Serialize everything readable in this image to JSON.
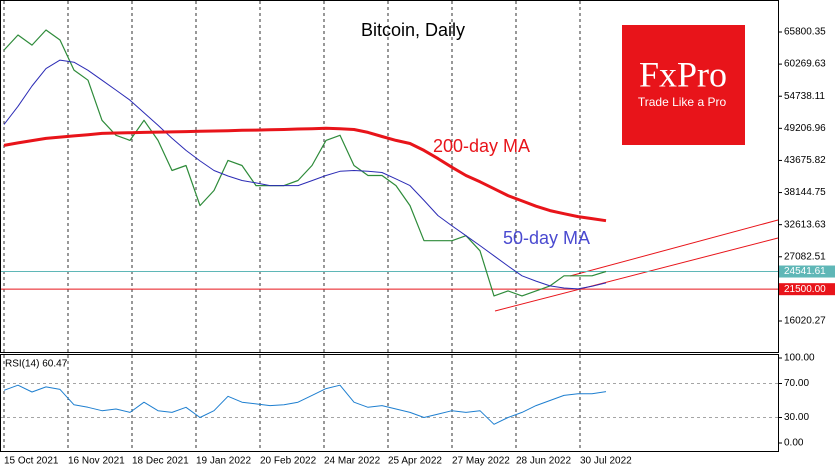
{
  "chart_data": [
    {
      "type": "line",
      "title": "Bitcoin, Daily",
      "x": [
        "2021-10-15",
        "2021-10-22",
        "2021-10-29",
        "2021-11-05",
        "2021-11-12",
        "2021-11-19",
        "2021-11-26",
        "2021-12-03",
        "2021-12-10",
        "2021-12-17",
        "2021-12-24",
        "2021-12-31",
        "2022-01-07",
        "2022-01-14",
        "2022-01-21",
        "2022-01-28",
        "2022-02-04",
        "2022-02-11",
        "2022-02-18",
        "2022-02-25",
        "2022-03-04",
        "2022-03-11",
        "2022-03-18",
        "2022-03-25",
        "2022-04-01",
        "2022-04-08",
        "2022-04-15",
        "2022-04-22",
        "2022-04-29",
        "2022-05-06",
        "2022-05-13",
        "2022-05-20",
        "2022-05-27",
        "2022-06-03",
        "2022-06-10",
        "2022-06-17",
        "2022-06-24",
        "2022-07-01",
        "2022-07-08",
        "2022-07-15",
        "2022-07-22",
        "2022-07-29",
        "2022-08-05",
        "2022-08-12"
      ],
      "series": [
        {
          "color": "#2e8b3a",
          "width": 1.2,
          "values": [
            62690,
            65280,
            63550,
            66150,
            64420,
            59230,
            57500,
            50590,
            48000,
            47130,
            50590,
            47130,
            41950,
            42810,
            35900,
            38490,
            43680,
            42810,
            39350,
            39350,
            39350,
            40220,
            42810,
            47130,
            48000,
            42810,
            41080,
            41080,
            39350,
            35900,
            29850,
            29850,
            29850,
            30710,
            28120,
            20340,
            21200,
            20340,
            21200,
            22070,
            23800,
            23800,
            23800,
            24541.61
          ]
        },
        {
          "name": "50-day MA",
          "color": "#2b2bb5",
          "width": 1,
          "values": [
            49860,
            53000,
            56500,
            59500,
            60960,
            60600,
            59200,
            57500,
            55800,
            54050,
            51900,
            49730,
            47500,
            45400,
            43600,
            41950,
            41000,
            40220,
            39800,
            39350,
            39350,
            39350,
            40200,
            41080,
            41800,
            41950,
            41800,
            41600,
            40500,
            39350,
            36800,
            34170,
            32400,
            30710,
            29000,
            27250,
            25500,
            23800,
            22900,
            22070,
            21700,
            21550,
            22000,
            22590
          ]
        },
        {
          "name": "200-day MA",
          "color": "#e8141a",
          "width": 3,
          "values": [
            46270,
            46700,
            47100,
            47470,
            47700,
            47900,
            48100,
            48340,
            48400,
            48450,
            48500,
            48550,
            48600,
            48650,
            48700,
            48750,
            48800,
            48860,
            48900,
            48950,
            49000,
            49100,
            49150,
            49210,
            49150,
            49000,
            48500,
            47800,
            47130,
            46600,
            45400,
            44000,
            42500,
            41080,
            40000,
            38800,
            37620,
            36700,
            35800,
            35030,
            34500,
            34000,
            33650,
            33300
          ]
        }
      ],
      "xlim": [
        "2021-10-13",
        "2022-11-06"
      ],
      "xticks": [
        {
          "value": "2021-10-15",
          "label": "15 Oct 2021"
        },
        {
          "value": "2021-11-16",
          "label": "16 Nov 2021"
        },
        {
          "value": "2021-12-18",
          "label": "18 Dec 2021"
        },
        {
          "value": "2022-01-19",
          "label": "19 Jan 2022"
        },
        {
          "value": "2022-02-20",
          "label": "20 Feb 2022"
        },
        {
          "value": "2022-03-24",
          "label": "24 Mar 2022"
        },
        {
          "value": "2022-04-25",
          "label": "25 Apr 2022"
        },
        {
          "value": "2022-05-27",
          "label": "27 May 2022"
        },
        {
          "value": "2022-06-28",
          "label": "28 Jun 2022"
        },
        {
          "value": "2022-07-30",
          "label": "30 Jul 2022"
        }
      ],
      "ylim": [
        10680,
        71312
      ],
      "yticks": [
        16020.27,
        27082.51,
        32613.63,
        38144.75,
        43675.82,
        49206.96,
        54738.11,
        60269.63,
        65800.35
      ],
      "hlines": [
        {
          "value": 24541.61,
          "label": "24541.61",
          "color": "#5fb7b7"
        },
        {
          "value": 21500,
          "label": "21500.00",
          "color": "#e8141a"
        }
      ],
      "grid": true
    },
    {
      "type": "line",
      "title": "RSI(14) 60.47",
      "series": [
        {
          "color": "#1e7fd0",
          "width": 1,
          "values": [
            62,
            68,
            60,
            66,
            63,
            45,
            42,
            38,
            40,
            36,
            48,
            38,
            36,
            42,
            30,
            38,
            55,
            48,
            46,
            44,
            45,
            48,
            56,
            64,
            68,
            48,
            42,
            44,
            40,
            36,
            30,
            34,
            38,
            36,
            38,
            22,
            30,
            36,
            44,
            50,
            56,
            58,
            58,
            60.47
          ]
        }
      ],
      "ylim": [
        0,
        100
      ],
      "yticks": [
        {
          "value": 0,
          "label": "0.00"
        },
        {
          "value": 30,
          "label": "30.00"
        },
        {
          "value": 70,
          "label": "70.00"
        },
        {
          "value": 100,
          "label": "100.00"
        }
      ],
      "grid": true
    }
  ],
  "logo": {
    "brand": "FxPro",
    "tagline": "Trade Like a Pro"
  }
}
